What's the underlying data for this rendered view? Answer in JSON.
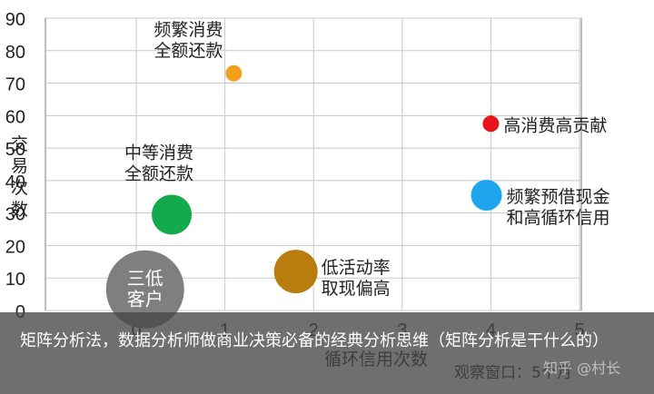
{
  "chart_data": {
    "type": "scatter",
    "xlabel": "循环信用次数",
    "ylabel": "交易次数",
    "x_ticks": [
      0,
      1,
      2,
      3,
      4,
      5
    ],
    "y_ticks": [
      0,
      10,
      20,
      30,
      40,
      50,
      60,
      70,
      80,
      90
    ],
    "xlim": [
      -0.5,
      5
    ],
    "ylim": [
      0,
      90
    ],
    "grid": true,
    "window_note": "观察窗口：5个月",
    "points": [
      {
        "label": "频繁消费\n全额还款",
        "x": 1.1,
        "y": 73,
        "size": 9,
        "color": "#f5a01a"
      },
      {
        "label": "高消费高贡献",
        "x": 4.0,
        "y": 57.5,
        "size": 9,
        "color": "#e8141b"
      },
      {
        "label": "中等消费\n全额还款",
        "x": 0.4,
        "y": 29.5,
        "size": 22,
        "color": "#12aa4c"
      },
      {
        "label": "频繁预借现金\n和高循环信用",
        "x": 3.95,
        "y": 35.5,
        "size": 17,
        "color": "#1ea5ee"
      },
      {
        "label": "低活动率\n取现偏高",
        "x": 1.8,
        "y": 12,
        "size": 24,
        "color": "#b87d0e"
      },
      {
        "label": "三低\n客户",
        "x": 0.1,
        "y": 6.5,
        "size": 43,
        "color": "#7f7f7f"
      }
    ]
  },
  "caption": "矩阵分析法，数据分析师做商业决策必备的经典分析思维（矩阵分析是干什么的）",
  "watermark": "知乎 @村长",
  "colors": {
    "grid": "#c8c8c8",
    "axis": "#7a7a7a",
    "text": "#222222",
    "banner": "#464646"
  }
}
